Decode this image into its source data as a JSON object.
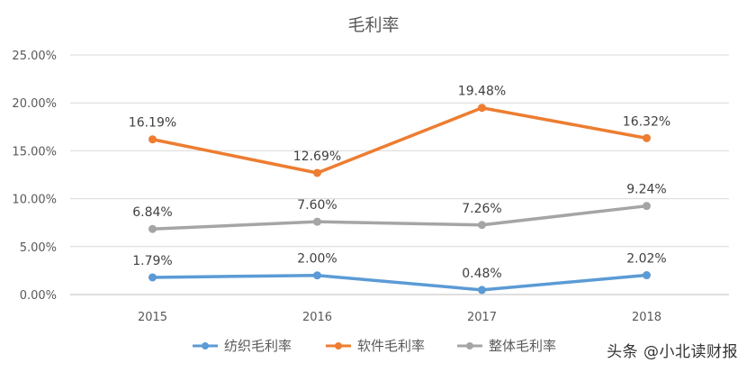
{
  "chart_data": {
    "type": "line",
    "title": "毛利率",
    "xlabel": "",
    "ylabel": "",
    "categories": [
      "2015",
      "2016",
      "2017",
      "2018"
    ],
    "ylim": [
      0,
      25
    ],
    "yticks": [
      "0.00%",
      "5.00%",
      "10.00%",
      "15.00%",
      "20.00%",
      "25.00%"
    ],
    "grid": true,
    "legend_position": "bottom",
    "series": [
      {
        "name": "纺织毛利率",
        "color": "#5B9BD5",
        "values": [
          1.79,
          2.0,
          0.48,
          2.02
        ],
        "labels": [
          "1.79%",
          "2.00%",
          "0.48%",
          "2.02%"
        ]
      },
      {
        "name": "软件毛利率",
        "color": "#ED7D31",
        "values": [
          16.19,
          12.69,
          19.48,
          16.32
        ],
        "labels": [
          "16.19%",
          "12.69%",
          "19.48%",
          "16.32%"
        ]
      },
      {
        "name": "整体毛利率",
        "color": "#A5A5A5",
        "values": [
          6.84,
          7.6,
          7.26,
          9.24
        ],
        "labels": [
          "6.84%",
          "7.60%",
          "7.26%",
          "9.24%"
        ]
      }
    ]
  },
  "watermark": "头条 @小北读财报"
}
